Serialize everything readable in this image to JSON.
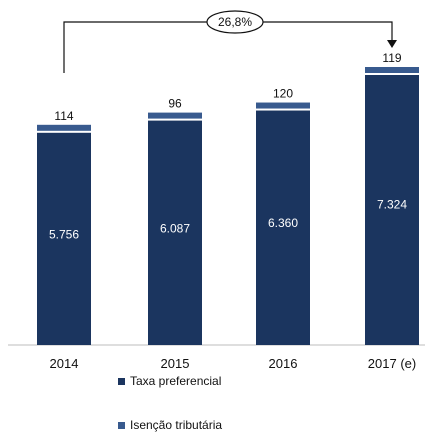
{
  "chart_data": {
    "type": "bar",
    "stacked": true,
    "categories": [
      "2014",
      "2015",
      "2016",
      "2017 (e)"
    ],
    "series": [
      {
        "name": "Taxa preferencial",
        "values": [
          5756,
          6087,
          6360,
          7324
        ],
        "labels": [
          "5.756",
          "6.087",
          "6.360",
          "7.324"
        ],
        "color": "#1b355f"
      },
      {
        "name": "Isenção tributária",
        "values": [
          114,
          96,
          120,
          119
        ],
        "labels": [
          "114",
          "96",
          "120",
          "119"
        ],
        "color": "#385a8e"
      }
    ],
    "annotation": {
      "text": "26,8%",
      "from": "2014",
      "to": "2017 (e)"
    },
    "legend_position": "bottom",
    "grid": false
  }
}
